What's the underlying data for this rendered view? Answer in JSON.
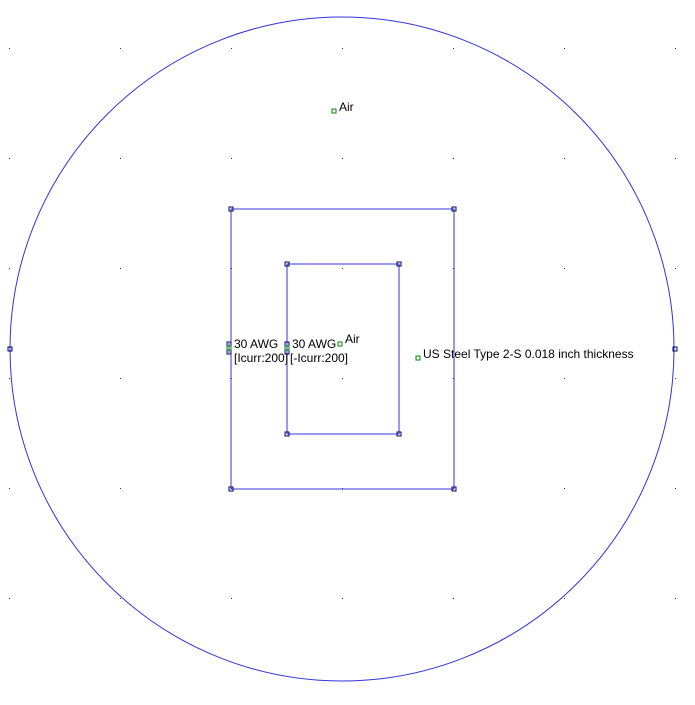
{
  "colors": {
    "background": "#ffffff",
    "boundary": "#3333dd",
    "node_stroke": "#000066",
    "block_marker": "#008800",
    "grid_dot": "#333333",
    "text": "#000000"
  },
  "labels": {
    "air_outer": "Air",
    "air_inner": "Air",
    "coil_left_name": "30 AWG",
    "coil_left_circuit": "[Icurr:200]",
    "coil_right_name": "30 AWG",
    "coil_right_circuit": "[-Icurr:200]",
    "steel": "US Steel Type 2-S 0.018 inch thickness"
  }
}
